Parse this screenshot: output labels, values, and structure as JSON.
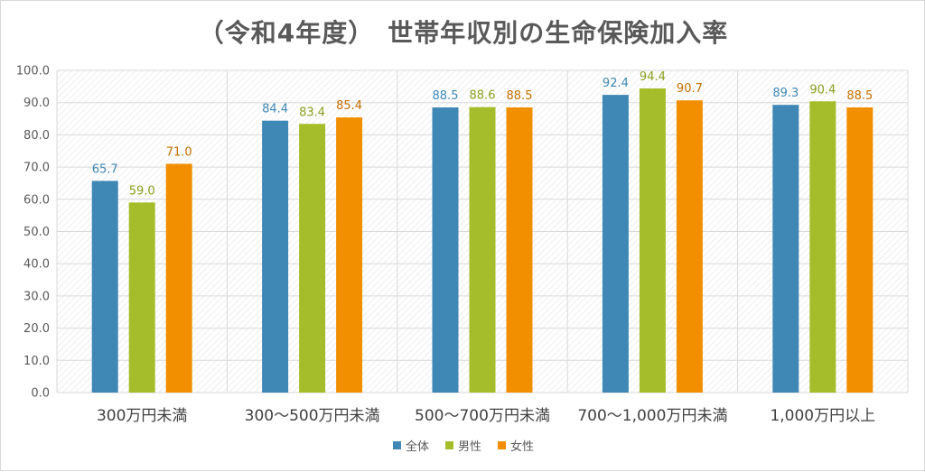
{
  "chart_data": {
    "type": "bar",
    "title": "（令和4年度）　世帯年収別の生命保険加入率",
    "categories": [
      "300万円未満",
      "300～500万円未満",
      "500～700万円未満",
      "700～1,000万円未満",
      "1,000万円以上"
    ],
    "series": [
      {
        "name": "全体",
        "color": "#3f87b5",
        "values": [
          65.7,
          84.4,
          88.5,
          92.4,
          89.3
        ],
        "label_color": "#3f87b5"
      },
      {
        "name": "男性",
        "color": "#a5bd2a",
        "values": [
          59.0,
          83.4,
          88.6,
          94.4,
          90.4
        ],
        "label_color": "#8aa01e"
      },
      {
        "name": "女性",
        "color": "#f28f00",
        "values": [
          71.0,
          85.4,
          88.5,
          90.7,
          88.5
        ],
        "label_color": "#c26f00"
      }
    ],
    "y_ticks": [
      "0.0",
      "10.0",
      "20.0",
      "30.0",
      "40.0",
      "50.0",
      "60.0",
      "70.0",
      "80.0",
      "90.0",
      "100.0"
    ],
    "ylim": [
      0,
      100
    ],
    "grid": true,
    "legend_position": "bottom"
  }
}
